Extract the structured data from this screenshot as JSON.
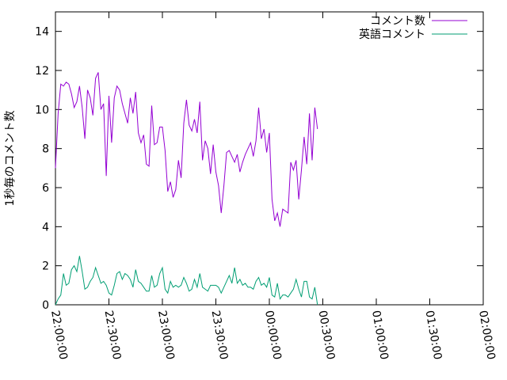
{
  "chart_data": {
    "type": "line",
    "title": "",
    "xlabel": "",
    "ylabel": "1秒毎のコメント数",
    "grid": false,
    "legend_position": "top-right",
    "xlim": [
      "22:00:00",
      "02:00:00"
    ],
    "ylim": [
      0,
      15
    ],
    "x_ticks": [
      "22:00:00",
      "22:30:00",
      "23:00:00",
      "23:30:00",
      "00:00:00",
      "00:30:00",
      "01:00:00",
      "01:30:00",
      "02:00:00"
    ],
    "y_ticks": [
      0,
      2,
      4,
      6,
      8,
      10,
      12,
      14
    ],
    "x_minutes_sample_interval": 1.5,
    "series": [
      {
        "name": "コメント数",
        "color": "#9400d3",
        "values": [
          7.0,
          9.8,
          11.3,
          11.2,
          11.4,
          11.3,
          10.8,
          10.1,
          10.4,
          11.2,
          10.1,
          8.5,
          11.0,
          10.6,
          9.7,
          11.6,
          11.9,
          10.0,
          10.3,
          6.6,
          10.7,
          8.3,
          10.6,
          11.2,
          11.0,
          10.3,
          9.8,
          9.3,
          10.6,
          9.8,
          10.9,
          8.8,
          8.3,
          8.7,
          7.2,
          7.1,
          10.2,
          8.2,
          8.3,
          9.1,
          9.1,
          7.9,
          5.8,
          6.3,
          5.5,
          5.9,
          7.4,
          6.5,
          9.3,
          10.5,
          9.2,
          8.9,
          9.5,
          8.8,
          10.4,
          7.4,
          8.4,
          8.0,
          6.7,
          8.2,
          6.8,
          6.1,
          4.7,
          6.1,
          7.8,
          7.9,
          7.6,
          7.3,
          7.7,
          6.8,
          7.3,
          7.7,
          8.0,
          8.3,
          7.6,
          8.4,
          10.1,
          8.5,
          9.0,
          7.8,
          8.8,
          5.4,
          4.3,
          4.7,
          4.0,
          4.9,
          4.8,
          4.7,
          7.3,
          6.9,
          7.4,
          5.4,
          6.9,
          8.6,
          7.2,
          9.8,
          7.4,
          10.1,
          9.0
        ]
      },
      {
        "name": "英語コメント",
        "color": "#009e73",
        "values": [
          0.0,
          0.3,
          0.5,
          1.6,
          1.0,
          1.1,
          1.8,
          2.0,
          1.7,
          2.5,
          1.7,
          0.8,
          0.9,
          1.2,
          1.4,
          1.9,
          1.5,
          1.1,
          1.2,
          1.0,
          0.6,
          0.5,
          1.0,
          1.6,
          1.7,
          1.3,
          1.6,
          1.5,
          1.3,
          0.9,
          1.8,
          1.2,
          1.1,
          0.9,
          0.7,
          0.7,
          1.5,
          0.9,
          1.0,
          1.6,
          1.9,
          0.8,
          0.6,
          1.2,
          0.9,
          1.0,
          0.9,
          1.0,
          1.4,
          1.1,
          0.7,
          0.8,
          1.3,
          0.9,
          1.6,
          0.9,
          0.8,
          0.7,
          1.0,
          1.0,
          1.0,
          0.9,
          0.6,
          0.9,
          1.2,
          1.5,
          1.1,
          1.9,
          1.1,
          1.3,
          1.0,
          1.1,
          0.9,
          0.9,
          0.8,
          1.2,
          1.4,
          1.0,
          1.1,
          0.9,
          1.4,
          0.5,
          0.4,
          1.1,
          0.3,
          0.5,
          0.5,
          0.4,
          0.6,
          0.8,
          1.3,
          0.8,
          0.4,
          1.2,
          1.2,
          0.4,
          0.3,
          0.9,
          0.0
        ]
      }
    ]
  }
}
